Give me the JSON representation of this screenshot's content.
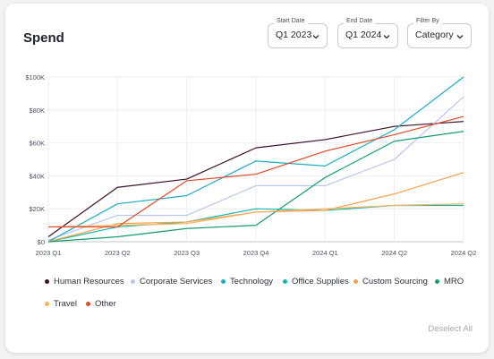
{
  "card": {
    "title": "Spend"
  },
  "filters": {
    "start": {
      "label": "Start Date",
      "value": "Q1 2023"
    },
    "end": {
      "label": "End Date",
      "value": "Q1 2024"
    },
    "by": {
      "label": "Filter By",
      "value": "Category"
    }
  },
  "deselect_label": "Deselect All",
  "chart_data": {
    "type": "line",
    "categories": [
      "2023 Q1",
      "2023 Q2",
      "2023 Q3",
      "2023 Q4",
      "2024 Q1",
      "2024 Q2",
      "2024 Q2"
    ],
    "ylim": [
      0,
      100000
    ],
    "yticks": [
      0,
      20000,
      40000,
      60000,
      80000,
      100000
    ],
    "ytick_labels": [
      "$0",
      "$20K",
      "$40K",
      "$60K",
      "$80K",
      "$100K"
    ],
    "grid": true,
    "legend_position": "bottom",
    "series": [
      {
        "name": "Human Resources",
        "color": "#3b0f2e",
        "values": [
          3000,
          33000,
          38000,
          57000,
          62000,
          70000,
          73000
        ]
      },
      {
        "name": "Corporate Services",
        "color": "#b7c6ea",
        "values": [
          1000,
          16000,
          16000,
          34000,
          34000,
          50000,
          88000
        ]
      },
      {
        "name": "Technology",
        "color": "#1aaec0",
        "values": [
          0,
          23000,
          28000,
          49000,
          46000,
          68000,
          100000
        ]
      },
      {
        "name": "Office Supplies",
        "color": "#16b7b0",
        "values": [
          0,
          9000,
          12000,
          20000,
          19000,
          22000,
          22000
        ]
      },
      {
        "name": "Custom Sourcing",
        "color": "#f4a24e",
        "values": [
          0,
          11000,
          12000,
          18000,
          19000,
          29000,
          42000
        ]
      },
      {
        "name": "MRO",
        "color": "#159b6f",
        "values": [
          0,
          3000,
          8000,
          10000,
          39000,
          61000,
          67000
        ]
      },
      {
        "name": "Travel",
        "color": "#f6b25f",
        "values": [
          9000,
          10000,
          11000,
          18000,
          20000,
          22000,
          23000
        ]
      },
      {
        "name": "Other",
        "color": "#e2492a",
        "values": [
          9000,
          9000,
          37000,
          41000,
          55000,
          65000,
          76000
        ]
      }
    ]
  }
}
